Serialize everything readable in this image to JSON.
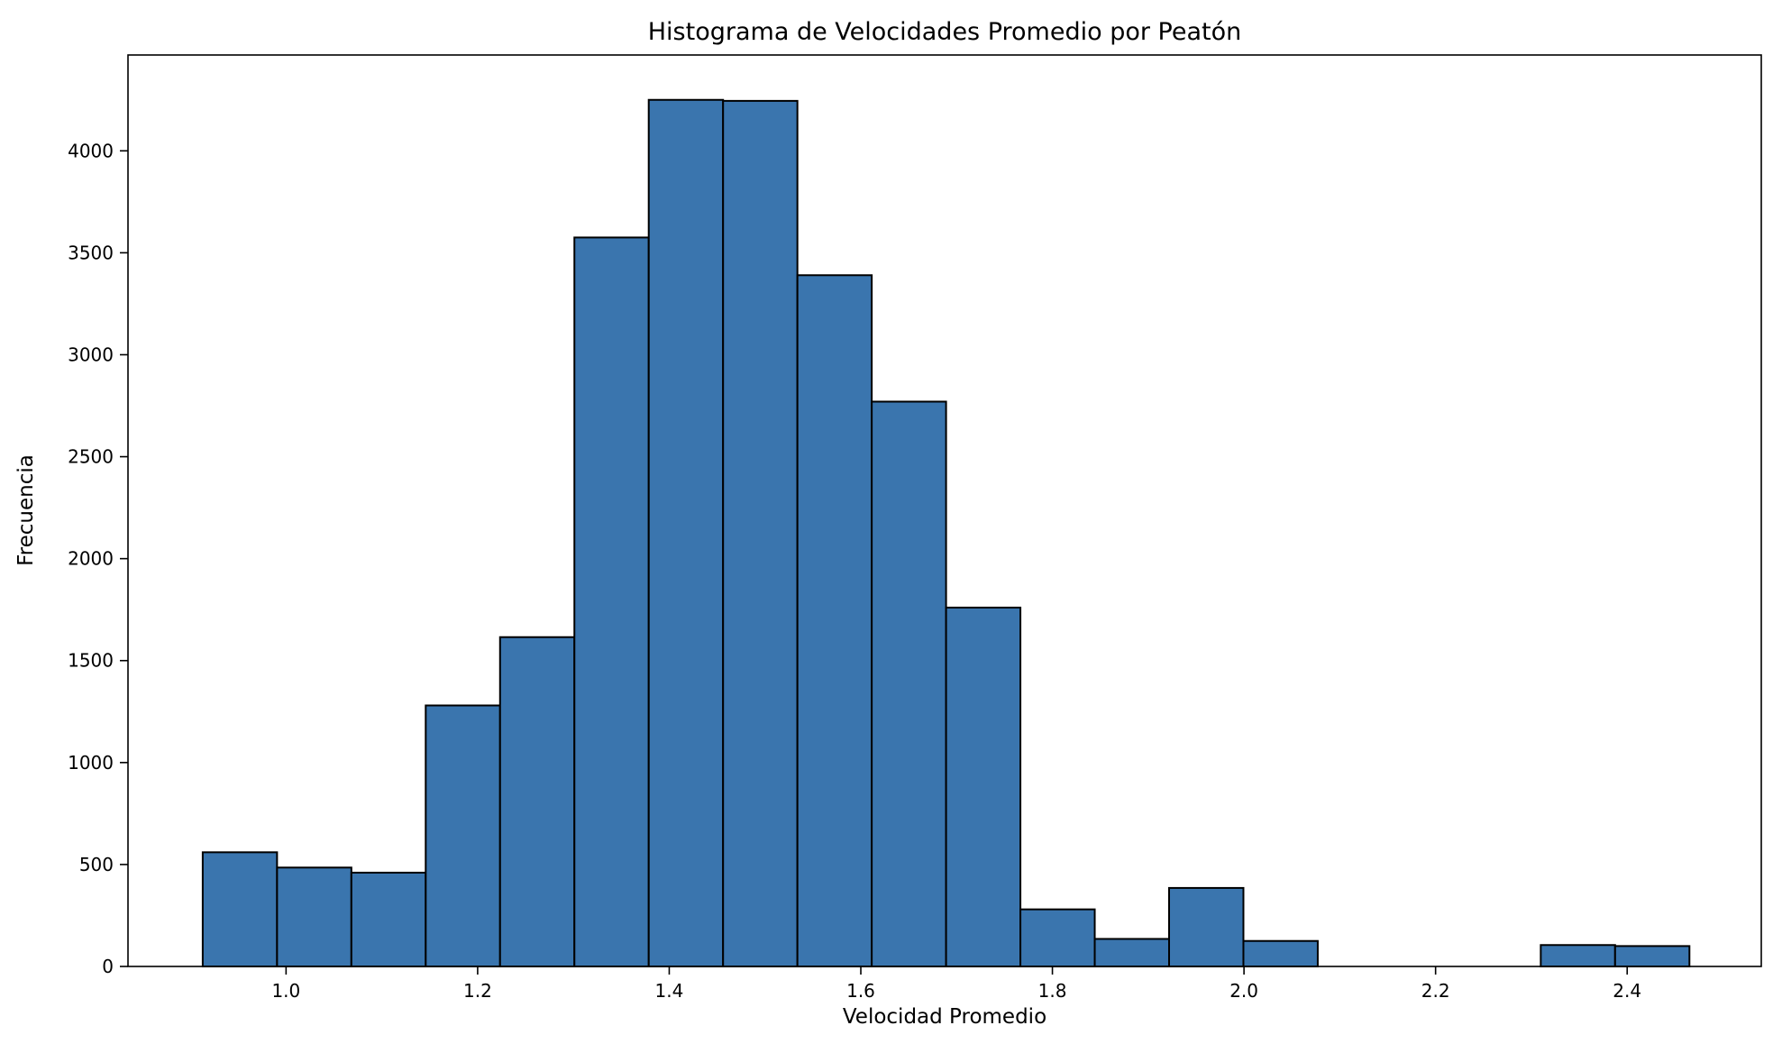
{
  "chart_data": {
    "type": "bar",
    "title": "Histograma de Velocidades Promedio por Peatón",
    "xlabel": "Velocidad Promedio",
    "ylabel": "Frecuencia",
    "xlim": [
      0.835,
      2.54
    ],
    "ylim": [
      0,
      4470
    ],
    "grid": false,
    "bar_color": "#3a75ae",
    "edge_color": "#000000",
    "x_ticks": [
      1.0,
      1.2,
      1.4,
      1.6,
      1.8,
      2.0,
      2.2,
      2.4
    ],
    "x_tick_labels": [
      "1.0",
      "1.2",
      "1.4",
      "1.6",
      "1.8",
      "2.0",
      "2.2",
      "2.4"
    ],
    "y_ticks": [
      0,
      500,
      1000,
      1500,
      2000,
      2500,
      3000,
      3500,
      4000
    ],
    "y_tick_labels": [
      "0",
      "500",
      "1000",
      "1500",
      "2000",
      "2500",
      "3000",
      "3500",
      "4000"
    ],
    "bin_edges": [
      0.913,
      0.9906,
      1.0682,
      1.1458,
      1.2234,
      1.301,
      1.3786,
      1.4562,
      1.5338,
      1.6114,
      1.689,
      1.7666,
      1.8442,
      1.9218,
      1.9994,
      2.077,
      2.1546,
      2.2322,
      2.3098,
      2.3874,
      2.465
    ],
    "values": [
      560,
      485,
      460,
      1280,
      1615,
      3575,
      4250,
      4245,
      3390,
      2770,
      1760,
      280,
      135,
      385,
      125,
      0,
      0,
      0,
      105,
      100
    ]
  }
}
